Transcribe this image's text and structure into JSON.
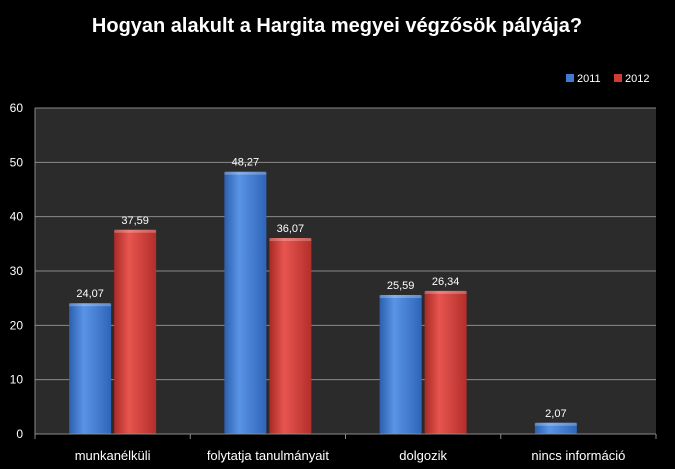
{
  "chart_data": {
    "type": "bar",
    "title": "Hogyan alakult a Hargita megyei végzősök pályája?",
    "categories": [
      "munkanélküli",
      "folytatja tanulmányait",
      "dolgozik",
      "nincs információ"
    ],
    "series": [
      {
        "name": "2011",
        "values": [
          24.07,
          48.27,
          25.59,
          2.07
        ],
        "labels": [
          "24,07",
          "48,27",
          "25,59",
          "2,07"
        ],
        "color": "#3f7bd1"
      },
      {
        "name": "2012",
        "values": [
          37.59,
          36.07,
          26.34,
          null
        ],
        "labels": [
          "37,59",
          "36,07",
          "26,34",
          null
        ],
        "color": "#d23b36"
      }
    ],
    "ylim": [
      0,
      60
    ],
    "yticks": [
      0,
      10,
      20,
      30,
      40,
      50,
      60
    ],
    "grid": true,
    "legend": "top-right",
    "colors": {
      "background": "#000000",
      "plot_area": "#2b2b2b",
      "gridline": "#8a8a8a",
      "text": "#ffffff"
    }
  }
}
